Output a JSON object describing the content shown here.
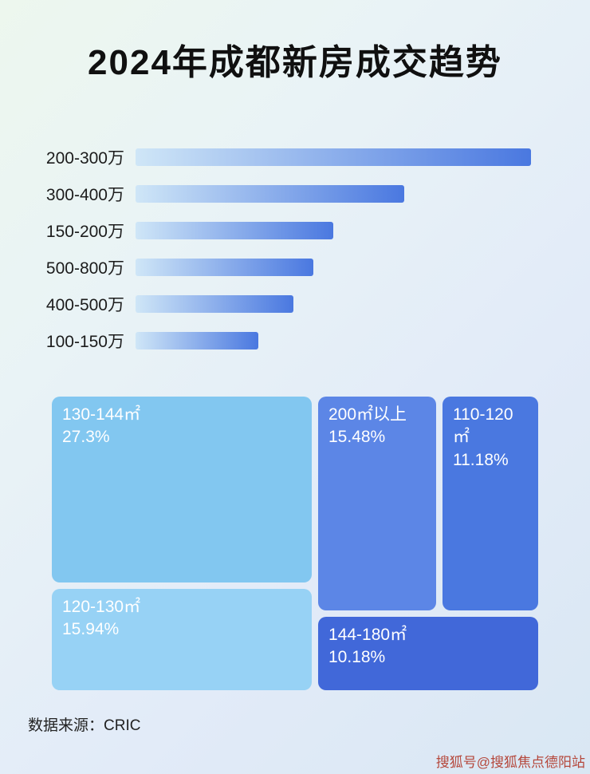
{
  "title": "2024年成都新房成交趋势",
  "source": "数据来源：CRIC",
  "watermark": "搜狐号@搜狐焦点德阳站",
  "colors": {
    "bar_gradient_start": "#cfe6f7",
    "bar_gradient_end": "#4a78e0",
    "title_color": "#101010"
  },
  "chart_data": [
    {
      "type": "bar",
      "orientation": "horizontal",
      "title": "2024年成都新房成交趋势",
      "categories": [
        "200-300万",
        "300-400万",
        "150-200万",
        "500-800万",
        "400-500万",
        "100-150万"
      ],
      "values": [
        100,
        68,
        50,
        45,
        40,
        31
      ],
      "value_unit": "relative bar length, % of longest bar (no numeric axis shown in image)",
      "xlabel": "",
      "ylabel": "",
      "grid": false,
      "legend": "none"
    },
    {
      "type": "treemap",
      "title": "",
      "items": [
        {
          "label": "130-144㎡",
          "pct": "27.3%",
          "value": 27.3,
          "color": "#82c7f0"
        },
        {
          "label": "120-130㎡",
          "pct": "15.94%",
          "value": 15.94,
          "color": "#97d2f5"
        },
        {
          "label": "200㎡以上",
          "pct": "15.48%",
          "value": 15.48,
          "color": "#5c86e6"
        },
        {
          "label": "110-120㎡",
          "pct": "11.18%",
          "value": 11.18,
          "color": "#4a78e0"
        },
        {
          "label": "144-180㎡",
          "pct": "10.18%",
          "value": 10.18,
          "color": "#4168d9"
        }
      ]
    }
  ]
}
